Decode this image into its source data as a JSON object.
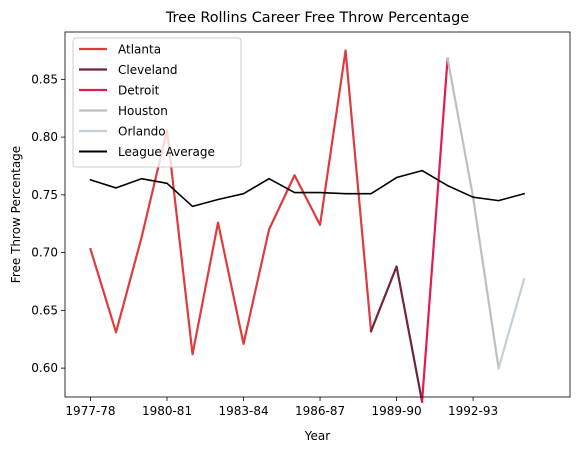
{
  "chart_data": {
    "type": "line",
    "title": "Tree Rollins Career Free Throw Percentage",
    "xlabel": "Year",
    "ylabel": "Free Throw Percentage",
    "x": [
      "1977-78",
      "1978-79",
      "1979-80",
      "1980-81",
      "1981-82",
      "1982-83",
      "1983-84",
      "1984-85",
      "1985-86",
      "1986-87",
      "1987-88",
      "1988-89",
      "1989-90",
      "1990-91",
      "1991-92",
      "1992-93",
      "1993-94",
      "1994-95",
      "1995-96"
    ],
    "xticks": [
      "1977-78",
      "1980-81",
      "1983-84",
      "1986-87",
      "1989-90",
      "1992-93"
    ],
    "xlim": [
      -1.0,
      18.8
    ],
    "ylim": [
      0.575,
      0.891
    ],
    "yticks": [
      0.6,
      0.65,
      0.7,
      0.75,
      0.8,
      0.85
    ],
    "ytick_labels": [
      "0.60",
      "0.65",
      "0.70",
      "0.75",
      "0.80",
      "0.85"
    ],
    "grid": false,
    "legend_position": "top-left",
    "series": [
      {
        "name": "Atlanta",
        "color": "#e03a3e",
        "values": [
          0.703,
          0.631,
          0.713,
          0.806,
          0.612,
          0.726,
          0.621,
          0.72,
          0.767,
          0.724,
          0.875,
          0.632,
          null,
          null,
          null,
          null,
          null,
          null,
          null
        ]
      },
      {
        "name": "Cleveland",
        "color": "#6f263d",
        "values": [
          null,
          null,
          null,
          null,
          null,
          null,
          null,
          null,
          null,
          null,
          null,
          0.632,
          0.688,
          0.571,
          null,
          null,
          null,
          null,
          null
        ]
      },
      {
        "name": "Detroit",
        "color": "#e31b4f",
        "values": [
          null,
          null,
          null,
          null,
          null,
          null,
          null,
          null,
          null,
          null,
          null,
          null,
          null,
          0.571,
          0.868,
          null,
          null,
          null,
          null
        ]
      },
      {
        "name": "Houston",
        "color": "#bfbfbf",
        "values": [
          null,
          null,
          null,
          null,
          null,
          null,
          null,
          null,
          null,
          null,
          null,
          null,
          null,
          null,
          0.868,
          0.748,
          0.6,
          null,
          null
        ]
      },
      {
        "name": "Orlando",
        "color": "#c4ced4",
        "values": [
          null,
          null,
          null,
          null,
          null,
          null,
          null,
          null,
          null,
          null,
          null,
          null,
          null,
          null,
          null,
          null,
          0.6,
          0.677,
          null
        ]
      },
      {
        "name": "League Average",
        "color": "#000000",
        "values": [
          0.763,
          0.756,
          0.764,
          0.76,
          0.74,
          0.746,
          0.751,
          0.764,
          0.752,
          0.752,
          0.751,
          0.751,
          0.765,
          0.771,
          0.758,
          0.748,
          0.745,
          0.751,
          null
        ]
      }
    ]
  }
}
